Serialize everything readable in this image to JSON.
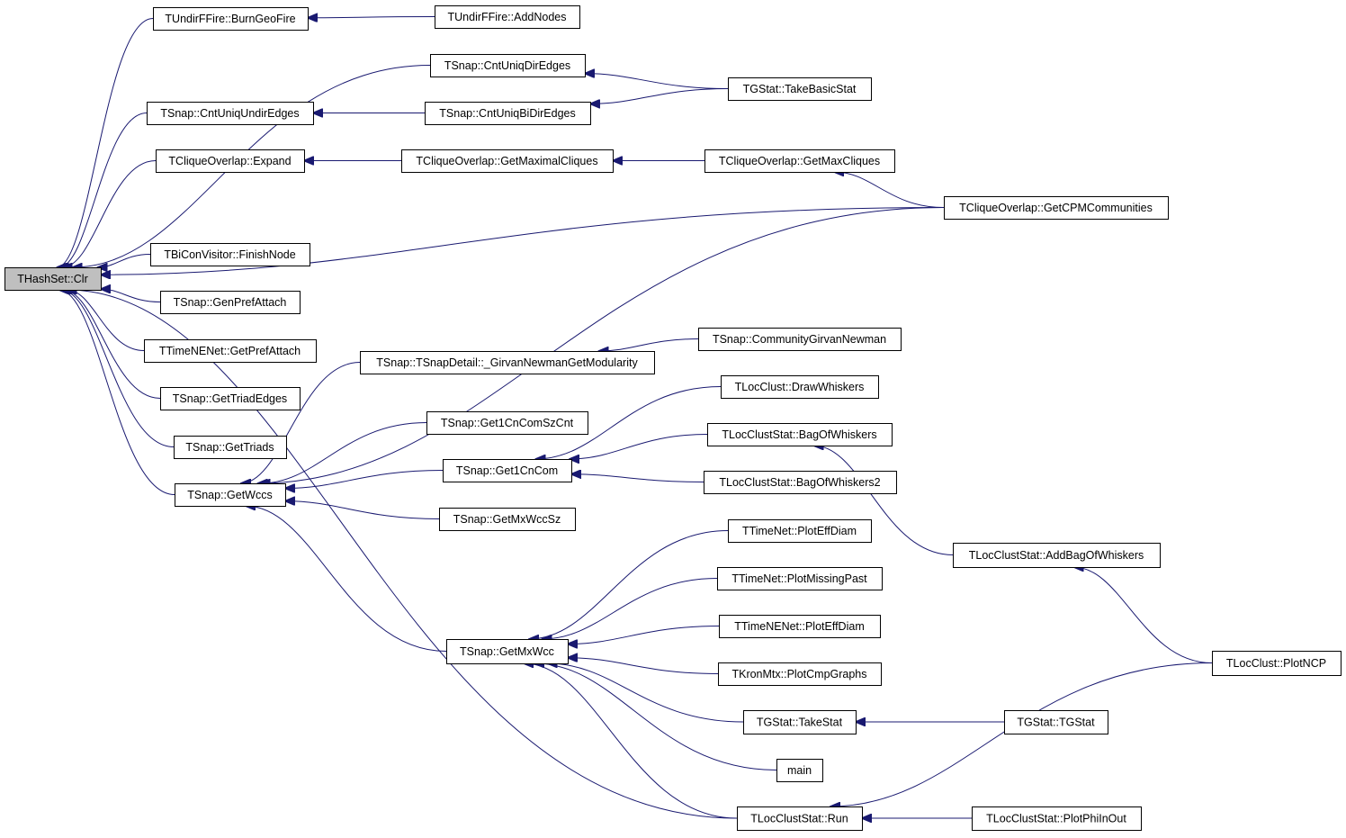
{
  "graph": {
    "type": "caller-graph",
    "edge_color": "#191970",
    "root_fill": "#bfbfbf",
    "nodes": [
      {
        "label": "THashSet::Clr",
        "root": true
      },
      {
        "label": "TUndirFFire::BurnGeoFire"
      },
      {
        "label": "TUndirFFire::AddNodes"
      },
      {
        "label": "TSnap::CntUniqDirEdges"
      },
      {
        "label": "TGStat::TakeBasicStat"
      },
      {
        "label": "TSnap::CntUniqUndirEdges"
      },
      {
        "label": "TSnap::CntUniqBiDirEdges"
      },
      {
        "label": "TCliqueOverlap::Expand"
      },
      {
        "label": "TCliqueOverlap::GetMaximalCliques"
      },
      {
        "label": "TCliqueOverlap::GetMaxCliques"
      },
      {
        "label": "TCliqueOverlap::GetCPMCommunities"
      },
      {
        "label": "TBiConVisitor::FinishNode"
      },
      {
        "label": "TSnap::GenPrefAttach"
      },
      {
        "label": "TTimeNENet::GetPrefAttach"
      },
      {
        "label": "TSnap::GetTriadEdges"
      },
      {
        "label": "TSnap::GetTriads"
      },
      {
        "label": "TSnap::GetWccs"
      },
      {
        "label": "TSnap::TSnapDetail::_GirvanNewmanGetModularity"
      },
      {
        "label": "TSnap::CommunityGirvanNewman"
      },
      {
        "label": "TLocClust::DrawWhiskers"
      },
      {
        "label": "TSnap::Get1CnComSzCnt"
      },
      {
        "label": "TLocClustStat::BagOfWhiskers"
      },
      {
        "label": "TSnap::Get1CnCom"
      },
      {
        "label": "TLocClustStat::BagOfWhiskers2"
      },
      {
        "label": "TSnap::GetMxWccSz"
      },
      {
        "label": "TTimeNet::PlotEffDiam"
      },
      {
        "label": "TLocClustStat::AddBagOfWhiskers"
      },
      {
        "label": "TTimeNet::PlotMissingPast"
      },
      {
        "label": "TTimeNENet::PlotEffDiam"
      },
      {
        "label": "TSnap::GetMxWcc"
      },
      {
        "label": "TLocClust::PlotNCP"
      },
      {
        "label": "TKronMtx::PlotCmpGraphs"
      },
      {
        "label": "TGStat::TakeStat"
      },
      {
        "label": "TGStat::TGStat"
      },
      {
        "label": "main"
      },
      {
        "label": "TLocClustStat::Run"
      },
      {
        "label": "TLocClustStat::PlotPhiInOut"
      }
    ],
    "edges": [
      {
        "from": 1,
        "to": 0
      },
      {
        "from": 2,
        "to": 1
      },
      {
        "from": 3,
        "to": 0
      },
      {
        "from": 4,
        "to": 3
      },
      {
        "from": 5,
        "to": 0
      },
      {
        "from": 6,
        "to": 5
      },
      {
        "from": 4,
        "to": 6
      },
      {
        "from": 7,
        "to": 0
      },
      {
        "from": 8,
        "to": 7
      },
      {
        "from": 9,
        "to": 8
      },
      {
        "from": 10,
        "to": 9
      },
      {
        "from": 10,
        "to": 0
      },
      {
        "from": 11,
        "to": 0
      },
      {
        "from": 12,
        "to": 0
      },
      {
        "from": 13,
        "to": 0
      },
      {
        "from": 14,
        "to": 0
      },
      {
        "from": 15,
        "to": 0
      },
      {
        "from": 16,
        "to": 0
      },
      {
        "from": 35,
        "to": 0
      },
      {
        "from": 10,
        "to": 16
      },
      {
        "from": 17,
        "to": 16
      },
      {
        "from": 18,
        "to": 17
      },
      {
        "from": 20,
        "to": 16
      },
      {
        "from": 22,
        "to": 16
      },
      {
        "from": 24,
        "to": 16
      },
      {
        "from": 29,
        "to": 16
      },
      {
        "from": 19,
        "to": 22
      },
      {
        "from": 21,
        "to": 22
      },
      {
        "from": 23,
        "to": 22
      },
      {
        "from": 26,
        "to": 21
      },
      {
        "from": 30,
        "to": 26
      },
      {
        "from": 25,
        "to": 29
      },
      {
        "from": 27,
        "to": 29
      },
      {
        "from": 28,
        "to": 29
      },
      {
        "from": 31,
        "to": 29
      },
      {
        "from": 32,
        "to": 29
      },
      {
        "from": 34,
        "to": 29
      },
      {
        "from": 35,
        "to": 29
      },
      {
        "from": 33,
        "to": 32
      },
      {
        "from": 30,
        "to": 35
      },
      {
        "from": 36,
        "to": 35
      }
    ]
  }
}
